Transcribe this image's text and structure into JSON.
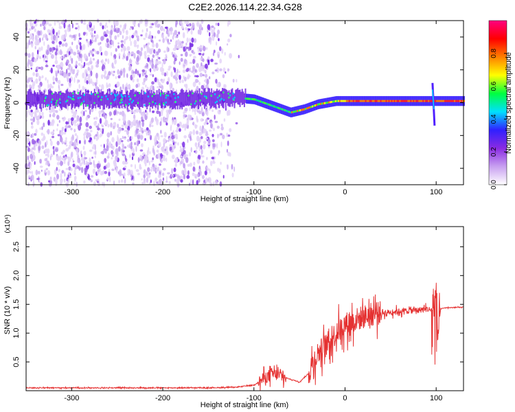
{
  "figure_title": "C2E2.2026.114.22.34.G28",
  "colors": {
    "spectrogram_noise": "#7a2ee6",
    "snr_line": "#e53232",
    "axis": "#000000"
  },
  "chart_data": [
    {
      "type": "heatmap",
      "title": "C2E2.2026.114.22.34.G28",
      "xlabel": "Height of straight line (km)",
      "ylabel": "Frequency (Hz)",
      "xlim": [
        -350,
        130
      ],
      "ylim": [
        -50,
        50
      ],
      "xticks": [
        -300,
        -200,
        -100,
        0,
        100
      ],
      "xtick_labels": [
        "-300",
        "-200",
        "-100",
        "0",
        "100"
      ],
      "yticks": [
        -40,
        -20,
        0,
        20,
        40
      ],
      "ytick_labels": [
        "-40",
        "-20",
        "0",
        "20",
        "40"
      ],
      "colorbar": {
        "label": "Normalized spectral amplitude",
        "range": [
          0,
          1
        ],
        "ticks": [
          0.0,
          0.2,
          0.4,
          0.6,
          0.8
        ],
        "tick_labels": [
          "0.0",
          "0.2",
          "0.4",
          "0.6",
          "0.8"
        ],
        "colormap": [
          "#ffffff",
          "#c8a0f0",
          "#8a2be2",
          "#3020ff",
          "#00e0ff",
          "#00ff40",
          "#ffff00",
          "#ff8000",
          "#ff0000",
          "#ff0080"
        ]
      },
      "features": [
        {
          "name": "broadband noise",
          "x_range": [
            -350,
            -120
          ],
          "freq_range": [
            -50,
            50
          ],
          "amplitude": 0.1
        },
        {
          "name": "signal ridge",
          "points": [
            {
              "x": -350,
              "freq": 2
            },
            {
              "x": -200,
              "freq": 2
            },
            {
              "x": -120,
              "freq": 3
            },
            {
              "x": -100,
              "freq": 2
            },
            {
              "x": -80,
              "freq": -2
            },
            {
              "x": -60,
              "freq": -6
            },
            {
              "x": -45,
              "freq": -4
            },
            {
              "x": -30,
              "freq": -1
            },
            {
              "x": -10,
              "freq": 1
            },
            {
              "x": 0,
              "freq": 1
            },
            {
              "x": 130,
              "freq": 1
            }
          ]
        },
        {
          "name": "spike",
          "x": 96,
          "freq_range": [
            -14,
            12
          ]
        }
      ]
    },
    {
      "type": "line",
      "xlabel": "Height of straight line (km)",
      "ylabel": "SNR (10 * v/v)",
      "y_multiplier": "(x10⁴)",
      "xlim": [
        -350,
        130
      ],
      "ylim": [
        0,
        2.85
      ],
      "xticks": [
        -300,
        -200,
        -100,
        0,
        100
      ],
      "xtick_labels": [
        "-300",
        "-200",
        "-100",
        "0",
        "100"
      ],
      "yticks": [
        0.5,
        1.0,
        1.5,
        2.0,
        2.5
      ],
      "ytick_labels": [
        "0.5",
        "1.0",
        "1.5",
        "2.0",
        "2.5"
      ],
      "series": [
        {
          "name": "SNR",
          "color": "#e53232",
          "x": [
            -350,
            -300,
            -250,
            -200,
            -150,
            -120,
            -100,
            -90,
            -80,
            -70,
            -60,
            -50,
            -40,
            -35,
            -30,
            -20,
            -10,
            0,
            10,
            20,
            30,
            40,
            60,
            80,
            90,
            95,
            98,
            100,
            102,
            105,
            110,
            130
          ],
          "values": [
            0.05,
            0.05,
            0.05,
            0.05,
            0.05,
            0.06,
            0.1,
            0.2,
            0.3,
            0.25,
            0.2,
            0.15,
            0.3,
            0.5,
            0.65,
            0.8,
            1.0,
            1.15,
            1.22,
            1.28,
            1.33,
            1.35,
            1.38,
            1.4,
            1.42,
            1.4,
            1.5,
            1.45,
            1.0,
            1.42,
            1.44,
            1.45
          ]
        }
      ],
      "noise": [
        {
          "x_range": [
            -95,
            -65
          ],
          "amplitude": 0.3
        },
        {
          "x_range": [
            -40,
            40
          ],
          "amplitude": 0.6
        },
        {
          "x_range": [
            40,
            95
          ],
          "amplitude": 0.15
        },
        {
          "x_range": [
            95,
            104
          ],
          "amplitude": 1.4
        }
      ]
    }
  ]
}
